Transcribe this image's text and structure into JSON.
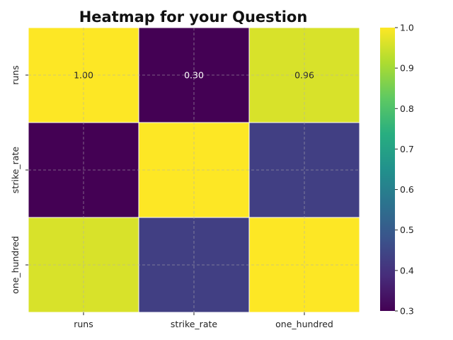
{
  "chart_data": {
    "type": "heatmap",
    "title": "Heatmap for your Question",
    "xlabel": "",
    "ylabel": "",
    "x_categories": [
      "runs",
      "strike_rate",
      "one_hundred"
    ],
    "y_categories": [
      "runs",
      "strike_rate",
      "one_hundred"
    ],
    "values": [
      [
        1.0,
        0.3,
        0.96
      ],
      [
        0.3,
        1.0,
        0.43
      ],
      [
        0.96,
        0.43,
        1.0
      ]
    ],
    "annotations": [
      [
        "1.00",
        "0.30",
        "0.96"
      ],
      [
        "",
        "",
        ""
      ],
      [
        "",
        "",
        ""
      ]
    ],
    "colormap": "viridis",
    "vmin": 0.3,
    "vmax": 1.0,
    "colorbar_ticks": [
      {
        "value": 0.3,
        "label": "0.3"
      },
      {
        "value": 0.4,
        "label": "0.4"
      },
      {
        "value": 0.5,
        "label": "0.5"
      },
      {
        "value": 0.6,
        "label": "0.6"
      },
      {
        "value": 0.7,
        "label": "0.7"
      },
      {
        "value": 0.8,
        "label": "0.8"
      },
      {
        "value": 0.9,
        "label": "0.9"
      },
      {
        "value": 1.0,
        "label": "1.0"
      }
    ],
    "grid": true,
    "colorbar_position": "right"
  }
}
